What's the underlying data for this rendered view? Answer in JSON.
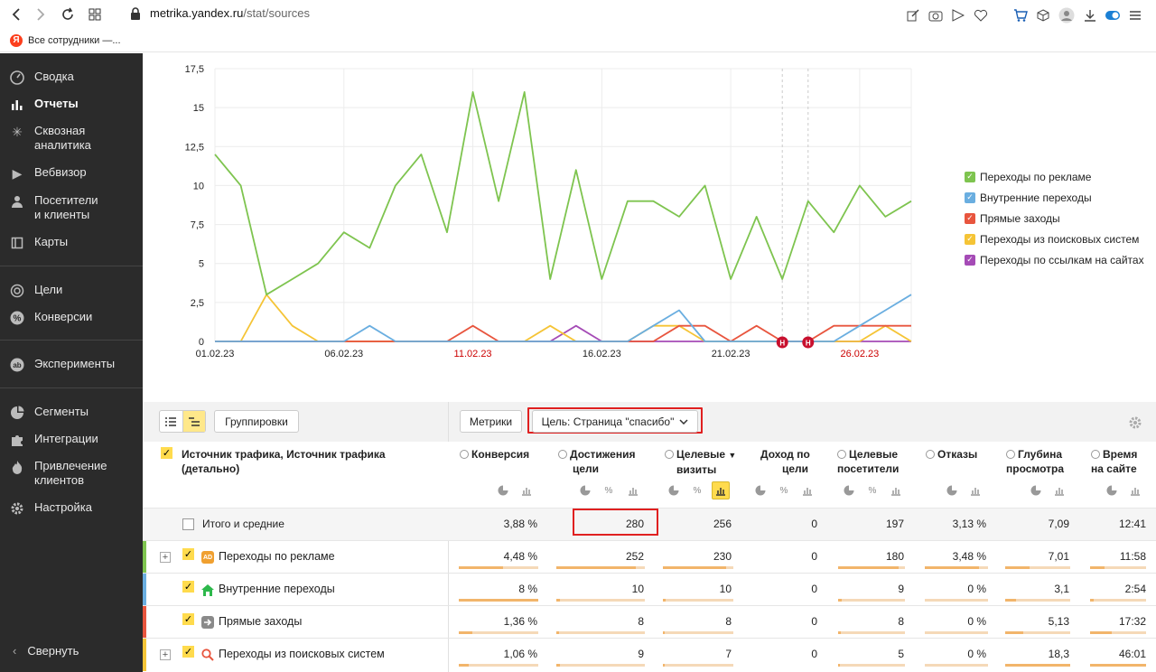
{
  "browser": {
    "url_domain": "metrika.yandex.ru",
    "url_path": "/stat/sources",
    "bookmark": "Все сотрудники —...",
    "bookmark_icon": "Я"
  },
  "sidebar": {
    "items": [
      {
        "label": "Сводка",
        "icon": "dashboard-icon"
      },
      {
        "label": "Отчеты",
        "icon": "bar-chart-icon",
        "active": true
      },
      {
        "label": "Сквозная аналитика",
        "icon": "snowflake-icon"
      },
      {
        "label": "Вебвизор",
        "icon": "play-icon"
      },
      {
        "label": "Посетители и клиенты",
        "icon": "user-icon"
      },
      {
        "label": "Карты",
        "icon": "map-icon"
      },
      {
        "label": "Цели",
        "icon": "target-icon"
      },
      {
        "label": "Конверсии",
        "icon": "percent-icon"
      },
      {
        "label": "Эксперименты",
        "icon": "ab-icon"
      },
      {
        "label": "Сегменты",
        "icon": "pie-icon"
      },
      {
        "label": "Интеграции",
        "icon": "puzzle-icon"
      },
      {
        "label": "Привлечение клиентов",
        "icon": "fire-icon"
      },
      {
        "label": "Настройка",
        "icon": "gear-icon"
      }
    ],
    "collapse_label": "Свернуть"
  },
  "chart_data": {
    "type": "line",
    "x": [
      "01.02.23",
      "02.02.23",
      "03.02.23",
      "04.02.23",
      "05.02.23",
      "06.02.23",
      "07.02.23",
      "08.02.23",
      "09.02.23",
      "10.02.23",
      "11.02.23",
      "12.02.23",
      "13.02.23",
      "14.02.23",
      "15.02.23",
      "16.02.23",
      "17.02.23",
      "18.02.23",
      "19.02.23",
      "20.02.23",
      "21.02.23",
      "22.02.23",
      "23.02.23",
      "24.02.23",
      "25.02.23",
      "26.02.23",
      "27.02.23",
      "28.02.23"
    ],
    "x_tick_labels": [
      "01.02.23",
      "06.02.23",
      "11.02.23",
      "16.02.23",
      "21.02.23",
      "26.02.23"
    ],
    "x_tick_label_colors": [
      "#222",
      "#222",
      "#c00",
      "#222",
      "#222",
      "#c00"
    ],
    "y_ticks": [
      "0",
      "2,5",
      "5",
      "7,5",
      "10",
      "12,5",
      "15",
      "17,5"
    ],
    "ylim": [
      0,
      17.5
    ],
    "holiday_marker": "Н",
    "holiday_days": [
      "23.02.23",
      "24.02.23"
    ],
    "series": [
      {
        "name": "Переходы по рекламе",
        "color": "#7ec44f",
        "values": [
          12,
          10,
          3,
          4,
          5,
          7,
          6,
          10,
          12,
          7,
          16,
          9,
          16,
          4,
          11,
          4,
          9,
          9,
          8,
          10,
          4,
          8,
          4,
          9,
          7,
          10,
          8,
          9
        ]
      },
      {
        "name": "Внутренние переходы",
        "color": "#6aaee0",
        "values": [
          0,
          0,
          0,
          0,
          0,
          0,
          1,
          0,
          0,
          0,
          0,
          0,
          0,
          0,
          0,
          0,
          0,
          1,
          2,
          0,
          0,
          0,
          0,
          0,
          0,
          1,
          2,
          3
        ]
      },
      {
        "name": "Прямые заходы",
        "color": "#e8553e",
        "values": [
          0,
          0,
          0,
          0,
          0,
          0,
          0,
          0,
          0,
          0,
          1,
          0,
          0,
          0,
          0,
          0,
          0,
          0,
          1,
          1,
          0,
          1,
          0,
          0,
          1,
          1,
          1,
          1
        ]
      },
      {
        "name": "Переходы из поисковых систем",
        "color": "#f5c436",
        "values": [
          0,
          0,
          3,
          1,
          0,
          0,
          0,
          0,
          0,
          0,
          0,
          0,
          0,
          1,
          0,
          0,
          0,
          1,
          1,
          0,
          0,
          0,
          0,
          0,
          0,
          0,
          1,
          0
        ]
      },
      {
        "name": "Переходы по ссылкам на сайтах",
        "color": "#a54bb6",
        "values": [
          0,
          0,
          0,
          0,
          0,
          0,
          0,
          0,
          0,
          0,
          0,
          0,
          0,
          0,
          1,
          0,
          0,
          0,
          0,
          0,
          0,
          0,
          0,
          0,
          0,
          0,
          0,
          0
        ]
      }
    ]
  },
  "toolbar": {
    "groupings_label": "Группировки",
    "metrics_label": "Метрики",
    "goal_label": "Цель: Страница \"спасибо\""
  },
  "table": {
    "dimension_header": "Источник трафика, Источник трафика (детально)",
    "columns": [
      {
        "line1": "Конверсия",
        "line2": ""
      },
      {
        "line1": "Достижения",
        "line2": "цели"
      },
      {
        "line1": "Целевые",
        "line2": "визиты"
      },
      {
        "line1": "Доход по",
        "line2": "цели"
      },
      {
        "line1": "Целевые",
        "line2": "посетители"
      },
      {
        "line1": "Отказы",
        "line2": ""
      },
      {
        "line1": "Глубина",
        "line2": "просмотра"
      },
      {
        "line1": "Время",
        "line2": "на сайте"
      }
    ],
    "sort_indicator": "▼",
    "totals": {
      "label": "Итого и средние",
      "values": [
        "3,88 %",
        "280",
        "256",
        "0",
        "197",
        "3,13 %",
        "7,09",
        "12:41"
      ]
    },
    "rows": [
      {
        "label": "Переходы по рекламе",
        "color": "#7ec44f",
        "icon_text": "AD",
        "values": [
          "4,48 %",
          "252",
          "230",
          "0",
          "180",
          "3,48 %",
          "7,01",
          "11:58"
        ],
        "bars": [
          0.56,
          0.9,
          0.9,
          0,
          0.91,
          0.85,
          0.38,
          0.25
        ]
      },
      {
        "label": "Внутренние переходы",
        "color": "#6aaee0",
        "values": [
          "8 %",
          "10",
          "10",
          "0",
          "9",
          "0 %",
          "3,1",
          "2:54"
        ],
        "bars": [
          1.0,
          0.04,
          0.04,
          0,
          0.05,
          0,
          0.17,
          0.06
        ]
      },
      {
        "label": "Прямые заходы",
        "color": "#e8553e",
        "values": [
          "1,36 %",
          "8",
          "8",
          "0",
          "8",
          "0 %",
          "5,13",
          "17:32"
        ],
        "bars": [
          0.17,
          0.03,
          0.03,
          0,
          0.04,
          0,
          0.28,
          0.38
        ]
      },
      {
        "label": "Переходы из поисковых систем",
        "color": "#f5c436",
        "values": [
          "1,06 %",
          "9",
          "7",
          "0",
          "5",
          "0 %",
          "18,3",
          "46:01"
        ],
        "bars": [
          0.13,
          0.04,
          0.03,
          0,
          0.03,
          0,
          1.0,
          1.0
        ]
      }
    ]
  }
}
